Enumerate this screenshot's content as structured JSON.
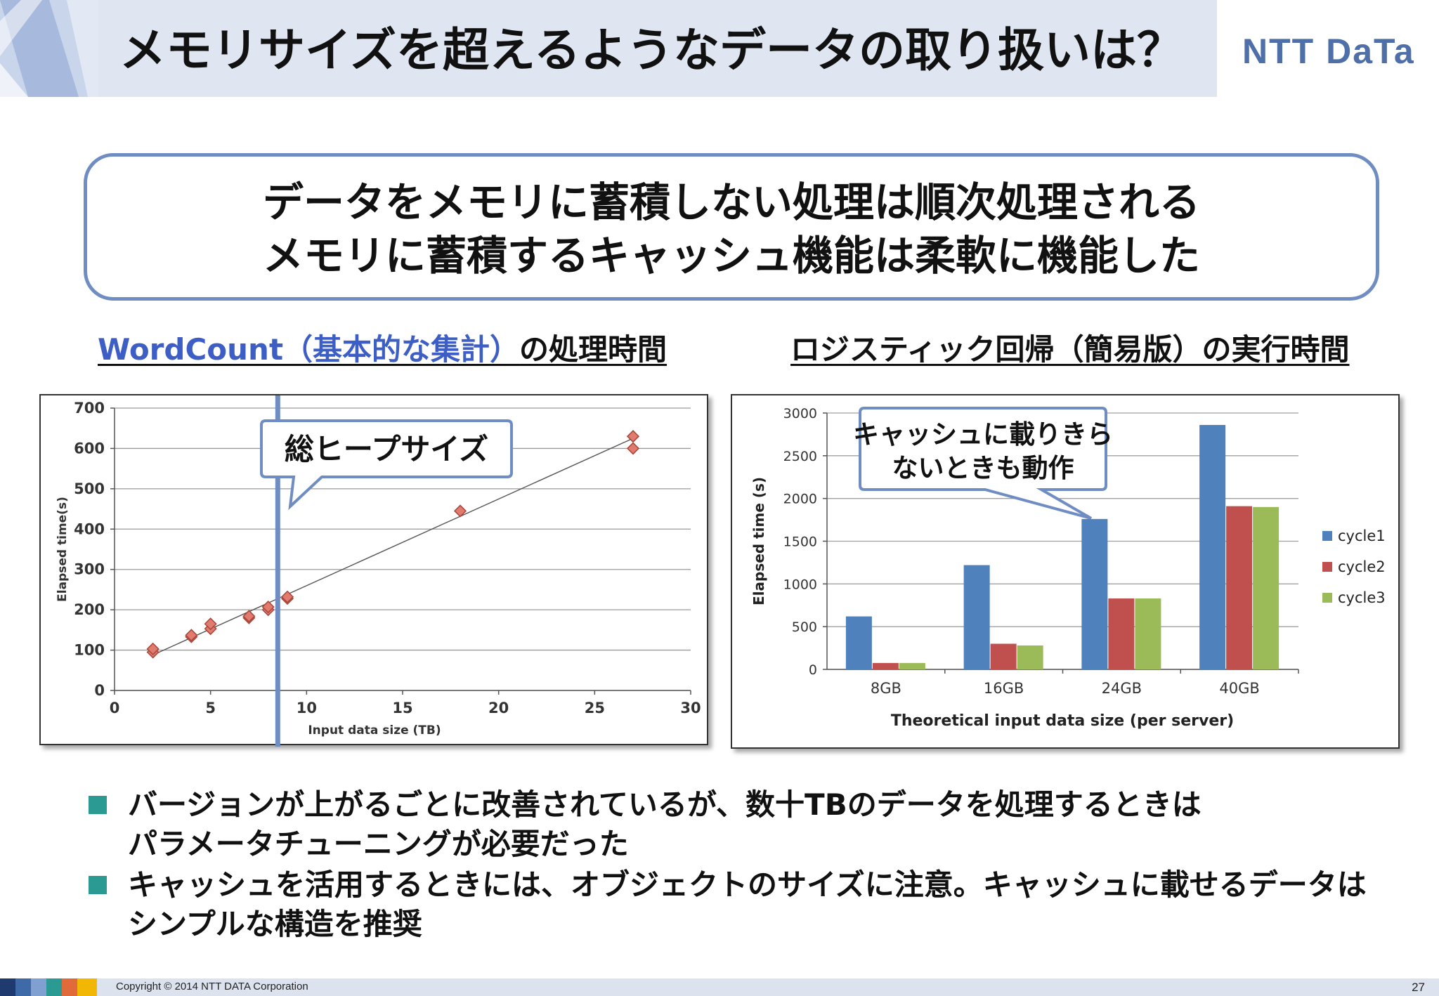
{
  "slide": {
    "title": "メモリサイズを超えるようなデータの取り扱いは？",
    "logo": "NTT DaTa"
  },
  "message": {
    "line1": "データをメモリに蓄積しない処理は順次処理される",
    "line2": "メモリに蓄積するキャッシュ機能は柔軟に機能した"
  },
  "left_heading": {
    "link_text": "WordCount（基本的な集計）",
    "rest": "の処理時間"
  },
  "right_heading": {
    "text": "ロジスティック回帰（簡易版）の実行時間"
  },
  "callouts": {
    "heap": "総ヒープサイズ",
    "cache_line1": "キャッシュに載りきら",
    "cache_line2": "ないときも動作"
  },
  "bullets": [
    {
      "line1": "バージョンが上がるごとに改善されているが、数十TBのデータを処理するときは",
      "line2": "パラメータチューニングが必要だった"
    },
    {
      "line1": "キャッシュを活用するときには、オブジェクトのサイズに注意。キャッシュに載せるデータは",
      "line2": "シンプルな構造を推奨"
    }
  ],
  "footer": {
    "copyright": "Copyright © 2014 NTT DATA Corporation",
    "page": "27"
  },
  "colors": {
    "cycle1": "#4f81bd",
    "cycle2": "#c0504d",
    "cycle3": "#9bbb59",
    "marker": "#e07b6e",
    "heap_line": "#6f8cc3",
    "accent_square": "#2a9a93"
  },
  "chart_data": [
    {
      "type": "scatter",
      "title": "",
      "xlabel": "Input data size (TB)",
      "ylabel": "Elapsed time(s)",
      "xlim": [
        0,
        30
      ],
      "ylim": [
        0,
        700
      ],
      "xticks": [
        0,
        5,
        10,
        15,
        20,
        25,
        30
      ],
      "yticks": [
        0,
        100,
        200,
        300,
        400,
        500,
        600,
        700
      ],
      "grid": true,
      "points": [
        {
          "x": 2,
          "y": 95
        },
        {
          "x": 2,
          "y": 103
        },
        {
          "x": 4,
          "y": 133
        },
        {
          "x": 4,
          "y": 137
        },
        {
          "x": 5,
          "y": 153
        },
        {
          "x": 5,
          "y": 165
        },
        {
          "x": 7,
          "y": 180
        },
        {
          "x": 7,
          "y": 184
        },
        {
          "x": 8,
          "y": 200
        },
        {
          "x": 8,
          "y": 207
        },
        {
          "x": 9,
          "y": 228
        },
        {
          "x": 9,
          "y": 232
        },
        {
          "x": 18,
          "y": 445
        },
        {
          "x": 27,
          "y": 600
        },
        {
          "x": 27,
          "y": 630
        }
      ],
      "trendline": {
        "from": [
          2,
          88
        ],
        "to": [
          27,
          625
        ]
      },
      "heap_marker_x": 8.5
    },
    {
      "type": "bar",
      "title": "",
      "xlabel": "Theoretical input data size (per server)",
      "ylabel": "Elapsed time (s)",
      "ylim": [
        0,
        3000
      ],
      "yticks": [
        0,
        500,
        1000,
        1500,
        2000,
        2500,
        3000
      ],
      "grid": true,
      "legend": "right",
      "categories": [
        "8GB",
        "16GB",
        "24GB",
        "40GB"
      ],
      "series": [
        {
          "name": "cycle1",
          "values": [
            620,
            1220,
            1760,
            2860
          ]
        },
        {
          "name": "cycle2",
          "values": [
            75,
            300,
            830,
            1910
          ]
        },
        {
          "name": "cycle3",
          "values": [
            75,
            280,
            830,
            1900
          ]
        }
      ]
    }
  ]
}
